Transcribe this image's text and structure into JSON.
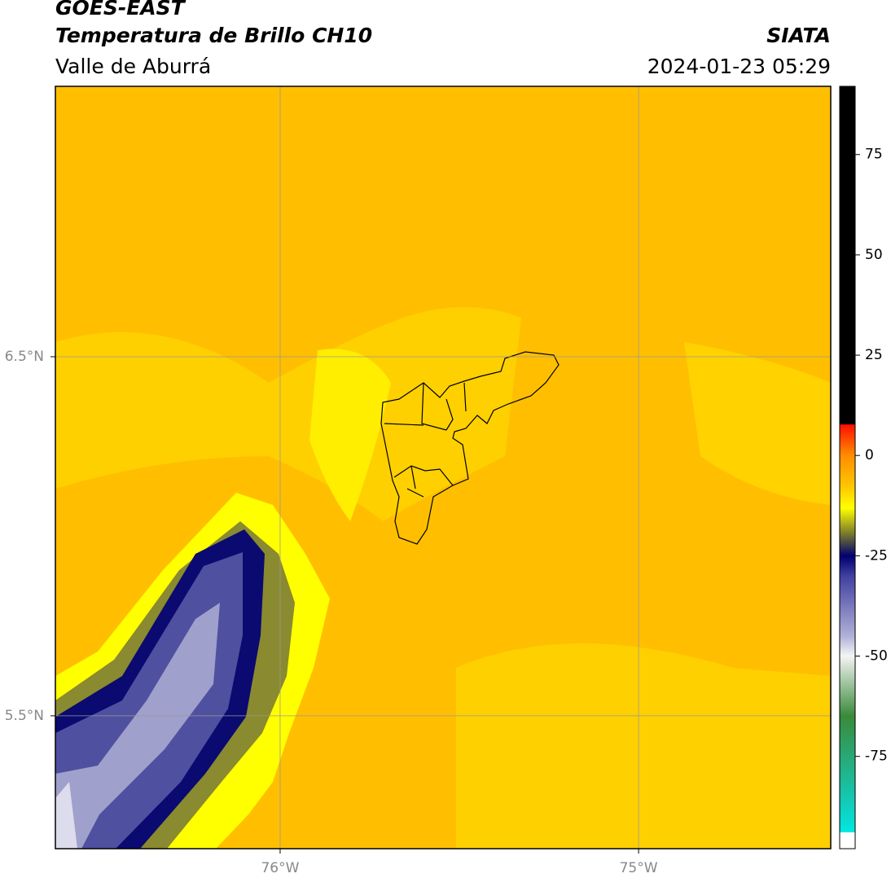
{
  "header": {
    "title": "GOES-EAST",
    "subtitle": "Temperatura de Brillo CH10",
    "region": "Valle de Aburrá",
    "source": "SIATA",
    "timestamp": "2024-01-23 05:29"
  },
  "map": {
    "xlim": [
      -76.627,
      -74.464
    ],
    "ylim": [
      5.13,
      7.253
    ],
    "xticks": [
      {
        "value": -76,
        "label": "76°W"
      },
      {
        "value": -75,
        "label": "75°W"
      }
    ],
    "yticks": [
      {
        "value": 6.5,
        "label": "6.5°N"
      },
      {
        "value": 5.5,
        "label": "5.5°N"
      }
    ],
    "grid": true
  },
  "colorbar": {
    "lim": [
      -98,
      92
    ],
    "ticks": [
      75,
      50,
      25,
      0,
      -25,
      -50,
      -75
    ]
  }
}
